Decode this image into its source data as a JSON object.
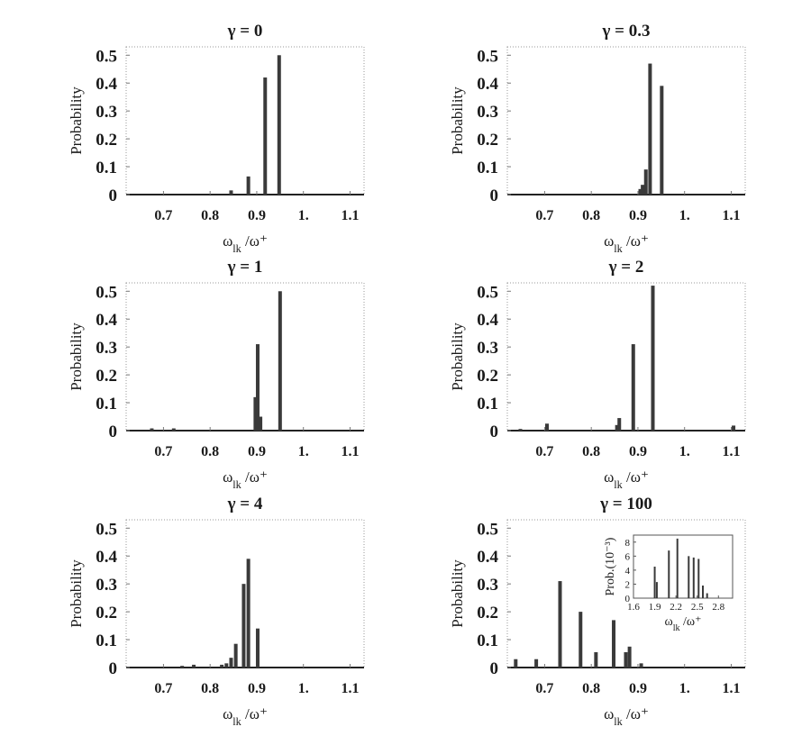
{
  "chart_data": [
    {
      "type": "bar",
      "title": "γ =   0",
      "ylabel": "Probability",
      "xlabel": "ω_lk /ω⁺",
      "xlim": [
        0.62,
        1.13
      ],
      "ylim": [
        0,
        0.53
      ],
      "xticks": [
        "0.7",
        "0.8",
        "0.9",
        "1.",
        "1.1"
      ],
      "xtick_values": [
        0.7,
        0.8,
        0.9,
        1.0,
        1.1
      ],
      "yticks": [
        "0",
        "0.1",
        "0.2",
        "0.3",
        "0.4",
        "0.5"
      ],
      "ytick_values": [
        0,
        0.1,
        0.2,
        0.3,
        0.4,
        0.5
      ],
      "x": [
        0.845,
        0.882,
        0.918,
        0.948
      ],
      "values": [
        0.015,
        0.065,
        0.42,
        0.5
      ]
    },
    {
      "type": "bar",
      "title": "γ =   0.3",
      "ylabel": "Probability",
      "xlabel": "ω_lk /ω⁺",
      "xlim": [
        0.62,
        1.13
      ],
      "ylim": [
        0,
        0.53
      ],
      "xticks": [
        "0.7",
        "0.8",
        "0.9",
        "1.",
        "1.1"
      ],
      "xtick_values": [
        0.7,
        0.8,
        0.9,
        1.0,
        1.1
      ],
      "yticks": [
        "0",
        "0.1",
        "0.2",
        "0.3",
        "0.4",
        "0.5"
      ],
      "ytick_values": [
        0,
        0.1,
        0.2,
        0.3,
        0.4,
        0.5
      ],
      "x": [
        0.905,
        0.91,
        0.917,
        0.926,
        0.951
      ],
      "values": [
        0.02,
        0.035,
        0.09,
        0.47,
        0.39
      ]
    },
    {
      "type": "bar",
      "title": "γ =   1",
      "ylabel": "Probability",
      "xlabel": "ω_lk /ω⁺",
      "xlim": [
        0.62,
        1.13
      ],
      "ylim": [
        0,
        0.53
      ],
      "xticks": [
        "0.7",
        "0.8",
        "0.9",
        "1.",
        "1.1"
      ],
      "xtick_values": [
        0.7,
        0.8,
        0.9,
        1.0,
        1.1
      ],
      "yticks": [
        "0",
        "0.1",
        "0.2",
        "0.3",
        "0.4",
        "0.5"
      ],
      "ytick_values": [
        0,
        0.1,
        0.2,
        0.3,
        0.4,
        0.5
      ],
      "x": [
        0.675,
        0.722,
        0.897,
        0.902,
        0.908,
        0.95
      ],
      "values": [
        0.008,
        0.008,
        0.12,
        0.31,
        0.05,
        0.5
      ]
    },
    {
      "type": "bar",
      "title": "γ =   2",
      "ylabel": "Probability",
      "xlabel": "ω_lk /ω⁺",
      "xlim": [
        0.62,
        1.13
      ],
      "ylim": [
        0,
        0.53
      ],
      "xticks": [
        "0.7",
        "0.8",
        "0.9",
        "1.",
        "1.1"
      ],
      "xtick_values": [
        0.7,
        0.8,
        0.9,
        1.0,
        1.1
      ],
      "yticks": [
        "0",
        "0.1",
        "0.2",
        "0.3",
        "0.4",
        "0.5"
      ],
      "ytick_values": [
        0,
        0.1,
        0.2,
        0.3,
        0.4,
        0.5
      ],
      "x": [
        0.648,
        0.705,
        0.855,
        0.86,
        0.89,
        0.932,
        1.105
      ],
      "values": [
        0.006,
        0.025,
        0.02,
        0.045,
        0.31,
        0.52,
        0.018
      ]
    },
    {
      "type": "bar",
      "title": "γ =   4",
      "ylabel": "Probability",
      "xlabel": "ω_lk /ω⁺",
      "xlim": [
        0.62,
        1.13
      ],
      "ylim": [
        0,
        0.53
      ],
      "xticks": [
        "0.7",
        "0.8",
        "0.9",
        "1.",
        "1.1"
      ],
      "xtick_values": [
        0.7,
        0.8,
        0.9,
        1.0,
        1.1
      ],
      "yticks": [
        "0",
        "0.1",
        "0.2",
        "0.3",
        "0.4",
        "0.5"
      ],
      "ytick_values": [
        0,
        0.1,
        0.2,
        0.3,
        0.4,
        0.5
      ],
      "x": [
        0.74,
        0.765,
        0.825,
        0.835,
        0.845,
        0.855,
        0.872,
        0.882,
        0.902
      ],
      "values": [
        0.006,
        0.01,
        0.01,
        0.015,
        0.035,
        0.085,
        0.3,
        0.39,
        0.14
      ]
    },
    {
      "type": "bar",
      "title": "γ =   100",
      "ylabel": "Probability",
      "xlabel": "ω_lk /ω⁺",
      "xlim": [
        0.62,
        1.13
      ],
      "ylim": [
        0,
        0.53
      ],
      "xticks": [
        "0.7",
        "0.8",
        "0.9",
        "1.",
        "1.1"
      ],
      "xtick_values": [
        0.7,
        0.8,
        0.9,
        1.0,
        1.1
      ],
      "yticks": [
        "0",
        "0.1",
        "0.2",
        "0.3",
        "0.4",
        "0.5"
      ],
      "ytick_values": [
        0,
        0.1,
        0.2,
        0.3,
        0.4,
        0.5
      ],
      "x": [
        0.638,
        0.682,
        0.733,
        0.777,
        0.81,
        0.848,
        0.874,
        0.882,
        0.907
      ],
      "values": [
        0.03,
        0.03,
        0.31,
        0.2,
        0.055,
        0.17,
        0.055,
        0.075,
        0.015
      ],
      "inset": {
        "type": "bar",
        "ylabel": "Prob.(10⁻³)",
        "xlabel": "ω_lk /ω⁺",
        "xlim": [
          1.6,
          3.0
        ],
        "ylim": [
          0,
          9
        ],
        "xticks": [
          "1.6",
          "1.9",
          "2.2",
          "2.5",
          "2.8"
        ],
        "xtick_values": [
          1.6,
          1.9,
          2.2,
          2.5,
          2.8
        ],
        "yticks": [
          "0",
          "2",
          "4",
          "6",
          "8"
        ],
        "ytick_values": [
          0,
          2,
          4,
          6,
          8
        ],
        "x": [
          1.9,
          1.93,
          2.1,
          2.22,
          2.38,
          2.45,
          2.52,
          2.58,
          2.64
        ],
        "values": [
          4.5,
          2.3,
          6.8,
          8.5,
          6.0,
          5.8,
          5.6,
          1.8,
          0.7
        ]
      }
    }
  ]
}
